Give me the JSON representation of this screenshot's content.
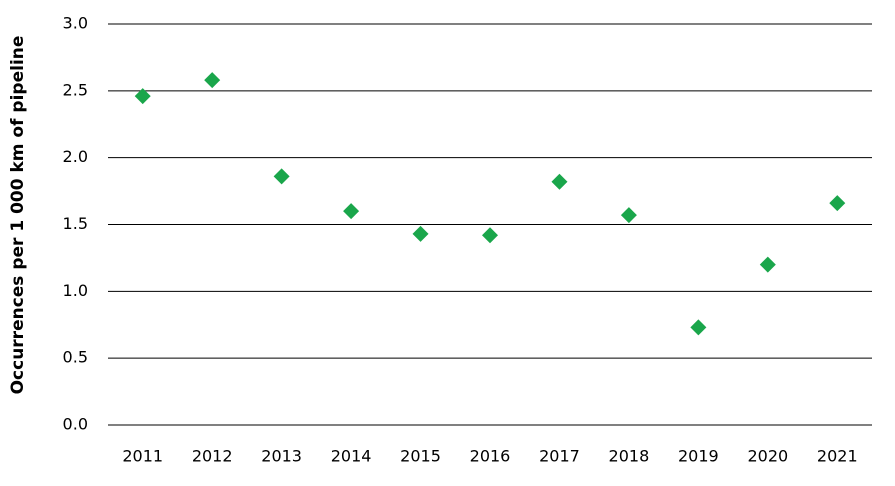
{
  "chart_data": {
    "type": "scatter",
    "y_label": "Occurrences per 1 000 km of pipeline",
    "categories": [
      "2011",
      "2012",
      "2013",
      "2014",
      "2015",
      "2016",
      "2017",
      "2018",
      "2019",
      "2020",
      "2021"
    ],
    "values": [
      2.46,
      2.58,
      1.86,
      1.6,
      1.43,
      1.42,
      1.82,
      1.57,
      0.73,
      1.2,
      1.66
    ],
    "color": "#1aa64b",
    "marker": "diamond",
    "ylim": [
      0,
      3
    ],
    "yticks": [
      {
        "value": 0,
        "label": "0.0"
      },
      0.5,
      {
        "value": 1,
        "label": "1.0"
      },
      1.5,
      {
        "value": 2,
        "label": "2.0"
      },
      2.5,
      {
        "value": 3,
        "label": "3.0"
      }
    ],
    "grid": true
  }
}
